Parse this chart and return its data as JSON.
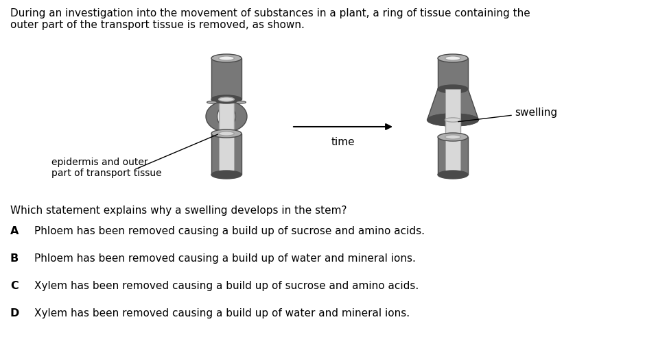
{
  "background_color": "#ffffff",
  "intro_text": "During an investigation into the movement of substances in a plant, a ring of tissue containing the\nouter part of the transport tissue is removed, as shown.",
  "question_text": "Which statement explains why a swelling develops in the stem?",
  "options": [
    {
      "letter": "A",
      "text": "Phloem has been removed causing a build up of sucrose and amino acids."
    },
    {
      "letter": "B",
      "text": "Phloem has been removed causing a build up of water and mineral ions."
    },
    {
      "letter": "C",
      "text": "Xylem has been removed causing a build up of sucrose and amino acids."
    },
    {
      "letter": "D",
      "text": "Xylem has been removed causing a build up of water and mineral ions."
    }
  ],
  "label_epidermis": "epidermis and outer\npart of transport tissue",
  "label_swelling": "swelling",
  "label_time": "time",
  "c_outer": "#787878",
  "c_dark": "#4a4a4a",
  "c_top_cap": "#b0b0b0",
  "c_inner": "#d8d8d8",
  "c_inner_edge": "#a0a0a0",
  "c_highlight": "#f0f0f0"
}
